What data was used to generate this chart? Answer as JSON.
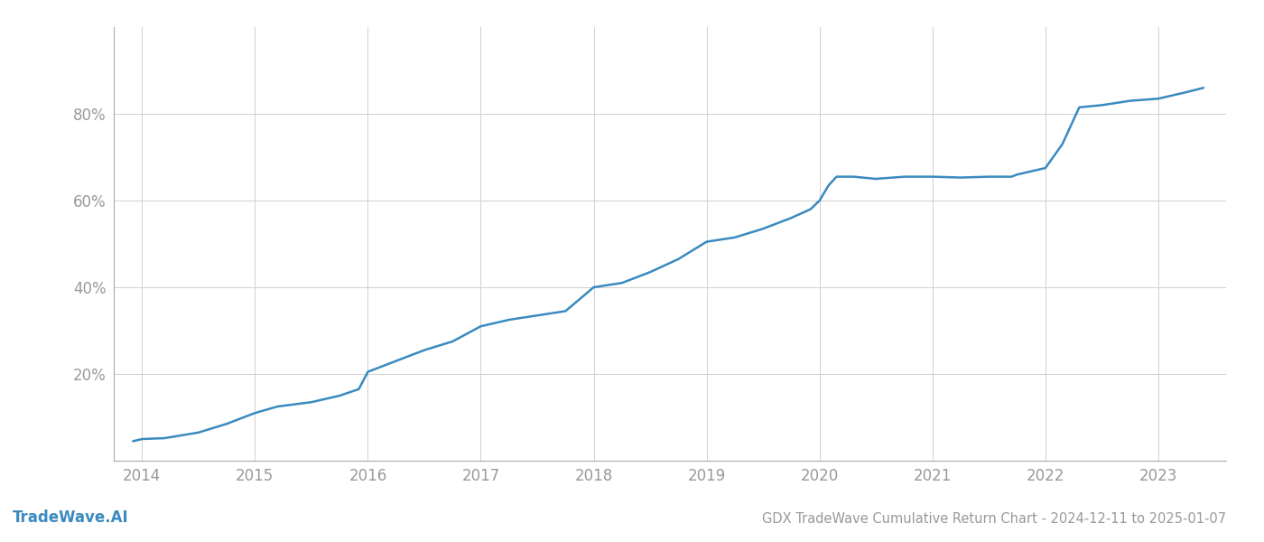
{
  "title": "GDX TradeWave Cumulative Return Chart - 2024-12-11 to 2025-01-07",
  "watermark": "TradeWave.AI",
  "line_color": "#3a8abf",
  "background_color": "#ffffff",
  "grid_color": "#d0d0d0",
  "x_values": [
    2013.92,
    2014.0,
    2014.2,
    2014.5,
    2014.75,
    2015.0,
    2015.2,
    2015.5,
    2015.75,
    2015.92,
    2016.0,
    2016.1,
    2016.25,
    2016.5,
    2016.75,
    2017.0,
    2017.25,
    2017.5,
    2017.75,
    2018.0,
    2018.25,
    2018.5,
    2018.75,
    2019.0,
    2019.25,
    2019.5,
    2019.75,
    2019.92,
    2020.0,
    2020.08,
    2020.15,
    2020.3,
    2020.5,
    2020.75,
    2021.0,
    2021.25,
    2021.5,
    2021.6,
    2021.7,
    2021.75,
    2022.0,
    2022.15,
    2022.3,
    2022.5,
    2022.75,
    2023.0,
    2023.25,
    2023.4
  ],
  "y_values": [
    4.5,
    5.0,
    5.2,
    6.5,
    8.5,
    11.0,
    12.5,
    13.5,
    15.0,
    16.5,
    20.5,
    21.5,
    23.0,
    25.5,
    27.5,
    31.0,
    32.5,
    33.5,
    34.5,
    40.0,
    41.0,
    43.5,
    46.5,
    50.5,
    51.5,
    53.5,
    56.0,
    58.0,
    60.0,
    63.5,
    65.5,
    65.5,
    65.0,
    65.5,
    65.5,
    65.3,
    65.5,
    65.5,
    65.5,
    66.0,
    67.5,
    73.0,
    81.5,
    82.0,
    83.0,
    83.5,
    85.0,
    86.0
  ],
  "xlim": [
    2013.75,
    2023.6
  ],
  "ylim": [
    0,
    100
  ],
  "yticks": [
    20,
    40,
    60,
    80
  ],
  "ytick_labels": [
    "20%",
    "40%",
    "60%",
    "80%"
  ],
  "xticks": [
    2014,
    2015,
    2016,
    2017,
    2018,
    2019,
    2020,
    2021,
    2022,
    2023
  ],
  "xtick_labels": [
    "2014",
    "2015",
    "2016",
    "2017",
    "2018",
    "2019",
    "2020",
    "2021",
    "2022",
    "2023"
  ],
  "tick_color": "#999999",
  "spine_color": "#aaaaaa",
  "label_fontsize": 12,
  "title_fontsize": 10.5,
  "watermark_fontsize": 12,
  "line_width": 1.8
}
